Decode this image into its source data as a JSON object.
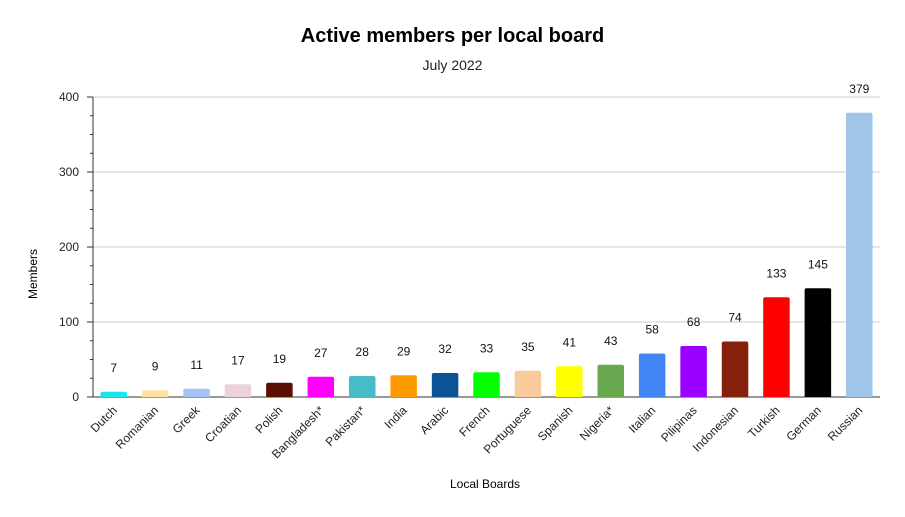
{
  "chart_data": {
    "type": "bar",
    "title": "Active members per local board",
    "subtitle": "July 2022",
    "xlabel": "Local Boards",
    "ylabel": "Members",
    "ylim": [
      0,
      400
    ],
    "yticks": [
      0,
      100,
      200,
      300,
      400
    ],
    "grid": true,
    "data_labels": true,
    "categories": [
      "Dutch",
      "Romanian",
      "Greek",
      "Croatian",
      "Polish",
      "Bangladesh*",
      "Pakistan*",
      "India",
      "Arabic",
      "French",
      "Portuguese",
      "Spanish",
      "Nigeria*",
      "Italian",
      "Pilipinas",
      "Indonesian",
      "Turkish",
      "German",
      "Russian"
    ],
    "values": [
      7,
      9,
      11,
      17,
      19,
      27,
      28,
      29,
      32,
      33,
      35,
      41,
      43,
      58,
      68,
      74,
      133,
      145,
      379
    ],
    "colors": [
      "#19e6ef",
      "#fce4a0",
      "#a4c2f4",
      "#ead1dc",
      "#5b0f00",
      "#ff00ff",
      "#46bdc6",
      "#ff9900",
      "#0b5394",
      "#00ff00",
      "#f9cb9c",
      "#ffff00",
      "#6aa84f",
      "#4285f4",
      "#9900ff",
      "#85200c",
      "#ff0000",
      "#000000",
      "#9fc5e8"
    ]
  }
}
